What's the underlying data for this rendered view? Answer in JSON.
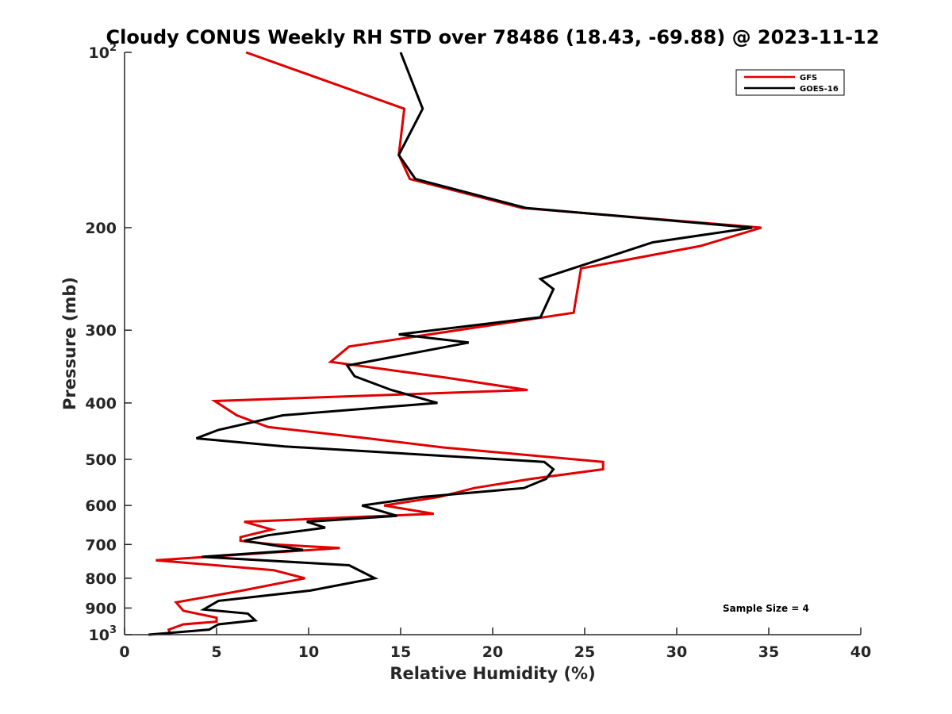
{
  "chart_data": {
    "type": "line",
    "title": "Cloudy CONUS Weekly RH STD over 78486 (18.43, -69.88) @ 2023-11-12",
    "xlabel": "Relative Humidity (%)",
    "ylabel": "Pressure (mb)",
    "xlim": [
      0,
      40
    ],
    "ylim": [
      100,
      1000
    ],
    "y_scale": "log",
    "y_reversed": true,
    "grid": false,
    "legend_position": "top-right",
    "annotation": "Sample Size = 4",
    "x_ticks": [
      {
        "value": 0,
        "label": "0"
      },
      {
        "value": 5,
        "label": "5"
      },
      {
        "value": 10,
        "label": "10"
      },
      {
        "value": 15,
        "label": "15"
      },
      {
        "value": 20,
        "label": "20"
      },
      {
        "value": 25,
        "label": "25"
      },
      {
        "value": 30,
        "label": "30"
      },
      {
        "value": 35,
        "label": "35"
      },
      {
        "value": 40,
        "label": "40"
      }
    ],
    "y_ticks": [
      {
        "value": 100,
        "label": "10",
        "sup": "2"
      },
      {
        "value": 200,
        "label": "200"
      },
      {
        "value": 300,
        "label": "300"
      },
      {
        "value": 400,
        "label": "400"
      },
      {
        "value": 500,
        "label": "500"
      },
      {
        "value": 600,
        "label": "600"
      },
      {
        "value": 700,
        "label": "700"
      },
      {
        "value": 800,
        "label": "800"
      },
      {
        "value": 900,
        "label": "900"
      },
      {
        "value": 1000,
        "label": "10",
        "sup": "3"
      }
    ],
    "series": [
      {
        "name": "GFS",
        "color": "#e00000",
        "points": [
          [
            6.6,
            100
          ],
          [
            15.2,
            125
          ],
          [
            14.9,
            150
          ],
          [
            15.5,
            165
          ],
          [
            21.6,
            185
          ],
          [
            34.6,
            200
          ],
          [
            31.3,
            215
          ],
          [
            24.8,
            235
          ],
          [
            24.4,
            280
          ],
          [
            12.2,
            320
          ],
          [
            11.2,
            340
          ],
          [
            17.5,
            362
          ],
          [
            21.9,
            380
          ],
          [
            4.9,
            397
          ],
          [
            6.1,
            420
          ],
          [
            7.8,
            440
          ],
          [
            13.2,
            460
          ],
          [
            17.3,
            477
          ],
          [
            26.0,
            505
          ],
          [
            26.0,
            520
          ],
          [
            22.1,
            540
          ],
          [
            19.0,
            560
          ],
          [
            17.1,
            580
          ],
          [
            14.1,
            600
          ],
          [
            16.8,
            620
          ],
          [
            6.5,
            640
          ],
          [
            8.0,
            660
          ],
          [
            6.3,
            680
          ],
          [
            6.3,
            690
          ],
          [
            8.1,
            700
          ],
          [
            11.7,
            710
          ],
          [
            1.7,
            745
          ],
          [
            8.1,
            775
          ],
          [
            9.8,
            800
          ],
          [
            6.4,
            840
          ],
          [
            2.8,
            880
          ],
          [
            3.2,
            910
          ],
          [
            5.0,
            935
          ],
          [
            5.0,
            950
          ],
          [
            3.2,
            960
          ],
          [
            2.4,
            980
          ],
          [
            2.5,
            1000
          ]
        ]
      },
      {
        "name": "GOES-16",
        "color": "#000000",
        "points": [
          [
            15.0,
            100
          ],
          [
            16.2,
            125
          ],
          [
            14.9,
            150
          ],
          [
            15.8,
            165
          ],
          [
            21.8,
            185
          ],
          [
            34.1,
            200
          ],
          [
            28.7,
            212
          ],
          [
            22.6,
            245
          ],
          [
            23.3,
            255
          ],
          [
            22.6,
            285
          ],
          [
            14.9,
            305
          ],
          [
            18.7,
            315
          ],
          [
            12.1,
            345
          ],
          [
            12.5,
            360
          ],
          [
            14.5,
            380
          ],
          [
            17.0,
            400
          ],
          [
            8.6,
            420
          ],
          [
            5.1,
            445
          ],
          [
            3.9,
            460
          ],
          [
            8.7,
            475
          ],
          [
            22.8,
            505
          ],
          [
            23.3,
            520
          ],
          [
            22.9,
            540
          ],
          [
            21.7,
            560
          ],
          [
            16.2,
            580
          ],
          [
            12.9,
            600
          ],
          [
            14.8,
            625
          ],
          [
            9.9,
            640
          ],
          [
            10.9,
            655
          ],
          [
            7.8,
            675
          ],
          [
            6.5,
            690
          ],
          [
            7.8,
            700
          ],
          [
            9.7,
            715
          ],
          [
            4.2,
            735
          ],
          [
            12.2,
            760
          ],
          [
            13.6,
            800
          ],
          [
            10.1,
            840
          ],
          [
            5.1,
            875
          ],
          [
            4.3,
            905
          ],
          [
            6.7,
            920
          ],
          [
            7.1,
            945
          ],
          [
            5.1,
            960
          ],
          [
            4.6,
            980
          ],
          [
            1.3,
            1000
          ]
        ]
      }
    ]
  }
}
